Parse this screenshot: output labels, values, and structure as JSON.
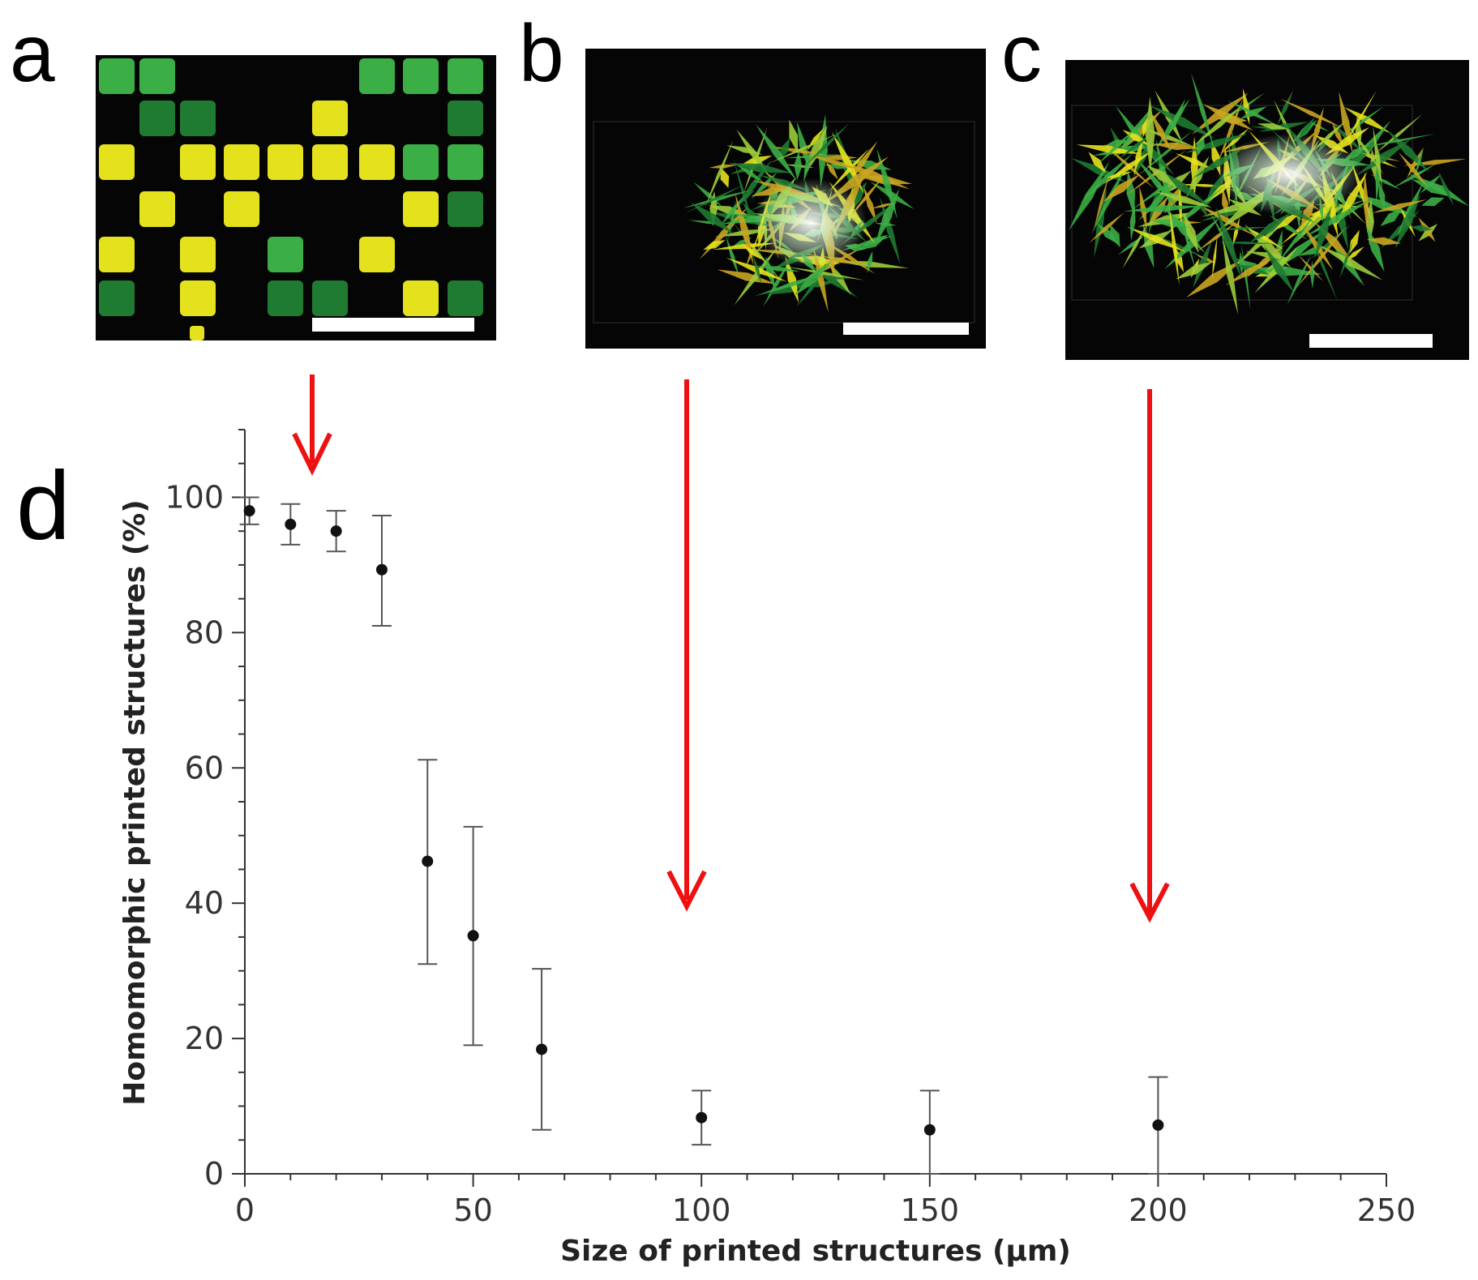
{
  "figure": {
    "panel_labels": [
      "a",
      "b",
      "c",
      "d"
    ],
    "colors": {
      "arrow": "#ee1111",
      "micrograph_bg": "#050505",
      "yellow": "#e4e21c",
      "green": "#3cae46",
      "dark_green": "#1f7a32",
      "white_glow": "#e8f6e8",
      "points": "#111111",
      "axis": "#333333"
    }
  },
  "chart_data": {
    "type": "scatter",
    "title": "",
    "xlabel": "Size of printed structures (μm)",
    "ylabel": "Homomorphic printed structures (%)",
    "xlim": [
      0,
      250
    ],
    "ylim": [
      0,
      110
    ],
    "xticks": [
      0,
      50,
      100,
      150,
      200,
      250
    ],
    "yticks": [
      0,
      20,
      40,
      60,
      80,
      100
    ],
    "grid": false,
    "error_bars": true,
    "points": [
      {
        "x": 1,
        "y": 98,
        "low": 96,
        "high": 100
      },
      {
        "x": 10,
        "y": 96,
        "low": 93,
        "high": 99
      },
      {
        "x": 20,
        "y": 95,
        "low": 92,
        "high": 98
      },
      {
        "x": 30,
        "y": 89.3,
        "low": 81,
        "high": 97.3
      },
      {
        "x": 40,
        "y": 46.2,
        "low": 31,
        "high": 61.2
      },
      {
        "x": 50,
        "y": 35.2,
        "low": 19,
        "high": 51.3
      },
      {
        "x": 65,
        "y": 18.4,
        "low": 6.5,
        "high": 30.3
      },
      {
        "x": 100,
        "y": 8.3,
        "low": 4.3,
        "high": 12.3
      },
      {
        "x": 150,
        "y": 6.5,
        "low": 0,
        "high": 12.3
      },
      {
        "x": 200,
        "y": 7.2,
        "low": 0,
        "high": 14.3
      }
    ]
  }
}
